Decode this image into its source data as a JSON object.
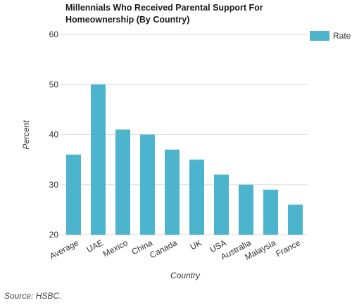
{
  "chart_data": {
    "type": "bar",
    "title": "Millennials Who Received Parental Support For Homeownership (By Country)",
    "xlabel": "Country",
    "ylabel": "Percent",
    "categories": [
      "Average",
      "UAE",
      "Mexico",
      "China",
      "Canada",
      "UK",
      "USA",
      "Australia",
      "Malaysia",
      "France"
    ],
    "series": [
      {
        "name": "Rate",
        "values": [
          36,
          50,
          41,
          40,
          37,
          35,
          32,
          30,
          29,
          26
        ]
      }
    ],
    "ylim": [
      20,
      60
    ],
    "yticks": [
      20,
      30,
      40,
      50,
      60
    ],
    "grid": true,
    "legend": "top-right",
    "bar_color": "#4db4cd",
    "grid_color": "#dddddd"
  },
  "source": "Source: HSBC."
}
